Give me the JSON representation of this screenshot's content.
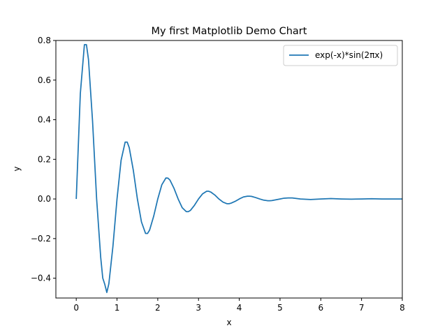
{
  "chart_data": {
    "type": "line",
    "title": "My first Matplotlib Demo Chart",
    "xlabel": "x",
    "ylabel": "y",
    "xlim": [
      -0.5,
      8
    ],
    "ylim": [
      -0.5,
      0.8
    ],
    "x_ticks": [
      0,
      1,
      2,
      3,
      4,
      5,
      6,
      7,
      8
    ],
    "x_tick_labels": [
      "0",
      "1",
      "2",
      "3",
      "4",
      "5",
      "6",
      "7",
      "8"
    ],
    "y_ticks": [
      -0.4,
      -0.2,
      0.0,
      0.2,
      0.4,
      0.6,
      0.8
    ],
    "y_tick_labels": [
      "−0.4",
      "−0.2",
      "0.0",
      "0.2",
      "0.4",
      "0.6",
      "0.8"
    ],
    "grid": false,
    "legend_position": "upper right",
    "series": [
      {
        "name": "exp(-x)*sin(2πx)",
        "color": "#1f77b4",
        "x": [
          0,
          0.1,
          0.2,
          0.25,
          0.3,
          0.4,
          0.5,
          0.6,
          0.65,
          0.7,
          0.75,
          0.8,
          0.9,
          1.0,
          1.1,
          1.2,
          1.25,
          1.3,
          1.4,
          1.5,
          1.6,
          1.7,
          1.75,
          1.8,
          1.9,
          2.0,
          2.1,
          2.2,
          2.25,
          2.3,
          2.4,
          2.5,
          2.6,
          2.7,
          2.75,
          2.8,
          2.9,
          3.0,
          3.1,
          3.2,
          3.25,
          3.3,
          3.4,
          3.5,
          3.6,
          3.7,
          3.75,
          3.8,
          3.9,
          4.0,
          4.1,
          4.2,
          4.25,
          4.3,
          4.4,
          4.5,
          4.6,
          4.7,
          4.75,
          4.8,
          4.9,
          5.0,
          5.1,
          5.2,
          5.25,
          5.3,
          5.5,
          5.75,
          6.0,
          6.25,
          6.5,
          6.75,
          7.0,
          7.25,
          7.5,
          7.75,
          8.0
        ],
        "y": [
          0,
          0.532,
          0.779,
          0.779,
          0.704,
          0.393,
          0.0,
          -0.295,
          -0.399,
          -0.431,
          -0.472,
          -0.428,
          -0.239,
          0.0,
          0.195,
          0.287,
          0.287,
          0.259,
          0.145,
          0.0,
          -0.116,
          -0.174,
          -0.174,
          -0.157,
          -0.087,
          0.0,
          0.072,
          0.106,
          0.105,
          0.095,
          0.053,
          0.0,
          -0.044,
          -0.064,
          -0.064,
          -0.058,
          -0.032,
          0.0,
          0.026,
          0.039,
          0.039,
          0.035,
          0.02,
          0.0,
          -0.016,
          -0.024,
          -0.024,
          -0.021,
          -0.012,
          0.0,
          0.01,
          0.014,
          0.014,
          0.013,
          0.007,
          0.0,
          -0.006,
          -0.009,
          -0.009,
          -0.008,
          -0.004,
          0.0,
          0.004,
          0.005,
          0.005,
          0.005,
          0.0,
          -0.003,
          0.0,
          0.002,
          0.0,
          -0.001,
          0.0,
          0.001,
          0.0,
          0.0,
          0.0
        ]
      }
    ]
  }
}
